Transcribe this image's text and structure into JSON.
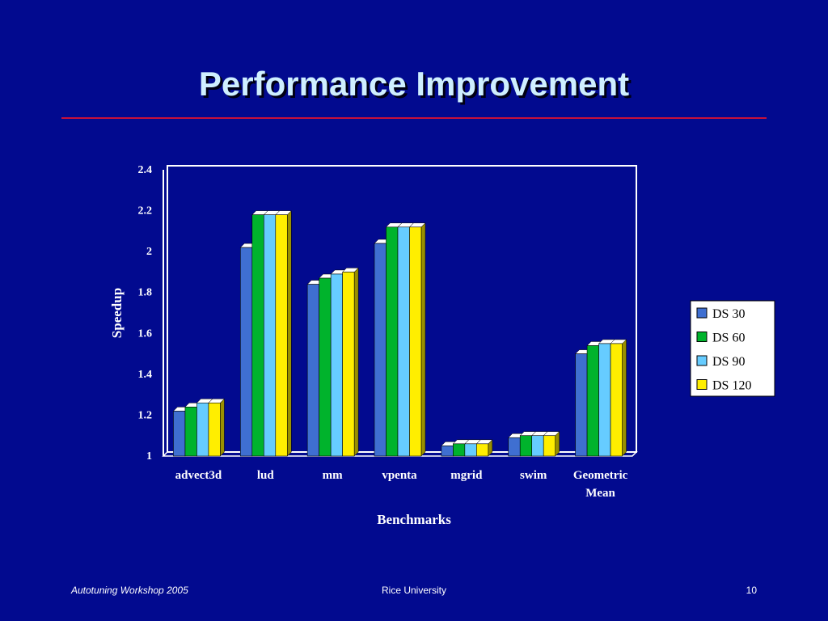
{
  "slide": {
    "title": "Performance Improvement",
    "footer_left": "Autotuning Workshop  2005",
    "footer_center": "Rice University",
    "footer_right": "10"
  },
  "colors": {
    "background": "#020a8f",
    "title_text": "#cfefff",
    "rule": "#c8103a",
    "plot_frame": "#ffffff",
    "ds30": "#3f6fd1",
    "ds60": "#00b32c",
    "ds90": "#66ccff",
    "ds120": "#ffee00"
  },
  "chart_data": {
    "type": "bar",
    "title": "",
    "xlabel": "Benchmarks",
    "ylabel": "Speedup",
    "ylim": [
      1,
      2.4
    ],
    "yticks": [
      "1",
      "1.2",
      "1.4",
      "1.6",
      "1.8",
      "2",
      "2.2",
      "2.4"
    ],
    "categories": [
      "advect3d",
      "lud",
      "mm",
      "vpenta",
      "mgrid",
      "swim",
      "Geometric Mean"
    ],
    "category_lines": [
      [
        "advect3d"
      ],
      [
        "lud"
      ],
      [
        "mm"
      ],
      [
        "vpenta"
      ],
      [
        "mgrid"
      ],
      [
        "swim"
      ],
      [
        "Geometric",
        "Mean"
      ]
    ],
    "series": [
      {
        "name": "DS 30",
        "color": "#3f6fd1",
        "values": [
          1.22,
          2.02,
          1.84,
          2.04,
          1.05,
          1.09,
          1.5
        ]
      },
      {
        "name": "DS 60",
        "color": "#00b32c",
        "values": [
          1.24,
          2.18,
          1.87,
          2.12,
          1.06,
          1.1,
          1.54
        ]
      },
      {
        "name": "DS 90",
        "color": "#66ccff",
        "values": [
          1.26,
          2.18,
          1.89,
          2.12,
          1.06,
          1.1,
          1.55
        ]
      },
      {
        "name": "DS 120",
        "color": "#ffee00",
        "values": [
          1.26,
          2.18,
          1.9,
          2.12,
          1.06,
          1.1,
          1.55
        ]
      }
    ],
    "grid": false,
    "legend_position": "right"
  }
}
